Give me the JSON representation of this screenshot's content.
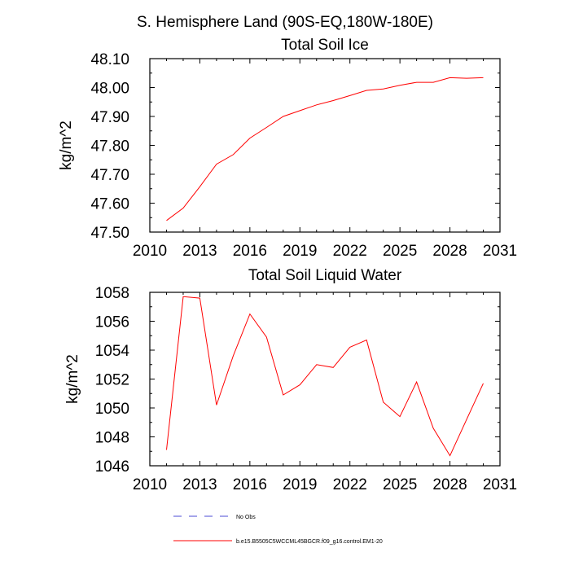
{
  "page": {
    "title": "S. Hemisphere Land (90S-EQ,180W-180E)"
  },
  "legend": {
    "items": [
      {
        "label": "No Obs",
        "color": "#4b4bd6",
        "dash": "dashed"
      },
      {
        "label": "b.e15.B5505C5WCCML45BGCR.f09_g16.control.EM1-20",
        "color": "#ff0000",
        "dash": "solid"
      }
    ]
  },
  "chart_data": [
    {
      "type": "line",
      "title": "Total Soil Ice",
      "xlabel": "",
      "ylabel": "kg/m^2",
      "xlim": [
        2010,
        2031
      ],
      "ylim": [
        47.5,
        48.1
      ],
      "xticks": [
        2010,
        2013,
        2016,
        2019,
        2022,
        2025,
        2028,
        2031
      ],
      "yticks": [
        47.5,
        47.6,
        47.7,
        47.8,
        47.9,
        48.0,
        48.1
      ],
      "ytick_labels": [
        "47.50",
        "47.60",
        "47.70",
        "47.80",
        "47.90",
        "48.00",
        "48.10"
      ],
      "series": [
        {
          "name": "b.e15.B5505C5WCCML45BGCR.f09_g16.control.EM1-20",
          "color": "#ff0000",
          "x": [
            2011,
            2012,
            2013,
            2014,
            2015,
            2016,
            2017,
            2018,
            2019,
            2020,
            2021,
            2022,
            2023,
            2024,
            2025,
            2026,
            2027,
            2028,
            2029,
            2030
          ],
          "values": [
            47.54,
            47.583,
            47.657,
            47.735,
            47.768,
            47.825,
            47.862,
            47.9,
            47.92,
            47.94,
            47.955,
            47.972,
            47.99,
            47.995,
            48.008,
            48.018,
            48.018,
            48.034,
            48.032,
            48.034
          ]
        }
      ]
    },
    {
      "type": "line",
      "title": "Total Soil Liquid Water",
      "xlabel": "",
      "ylabel": "kg/m^2",
      "xlim": [
        2010,
        2031
      ],
      "ylim": [
        1046,
        1058
      ],
      "xticks": [
        2010,
        2013,
        2016,
        2019,
        2022,
        2025,
        2028,
        2031
      ],
      "yticks": [
        1046,
        1048,
        1050,
        1052,
        1054,
        1056,
        1058
      ],
      "ytick_labels": [
        "1046",
        "1048",
        "1050",
        "1052",
        "1054",
        "1056",
        "1058"
      ],
      "series": [
        {
          "name": "b.e15.B5505C5WCCML45BGCR.f09_g16.control.EM1-20",
          "color": "#ff0000",
          "x": [
            2011,
            2012,
            2013,
            2014,
            2015,
            2016,
            2017,
            2018,
            2019,
            2020,
            2021,
            2022,
            2023,
            2024,
            2025,
            2026,
            2027,
            2028,
            2029,
            2030
          ],
          "values": [
            1047.1,
            1057.7,
            1057.6,
            1050.2,
            1053.6,
            1056.5,
            1054.9,
            1050.9,
            1051.6,
            1053.0,
            1052.8,
            1054.2,
            1054.7,
            1050.4,
            1049.4,
            1051.8,
            1048.6,
            1046.7,
            1049.2,
            1051.7
          ]
        }
      ]
    }
  ]
}
